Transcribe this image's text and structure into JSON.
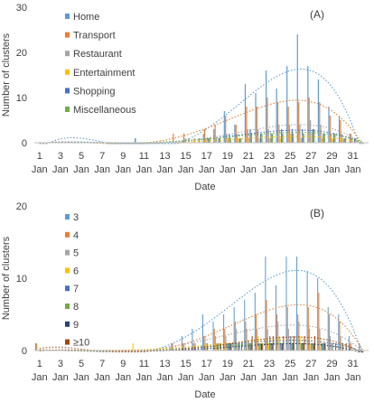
{
  "chart_data": [
    {
      "type": "bar",
      "panel_label": "(A)",
      "xlabel": "Date",
      "ylabel": "Number of clusters",
      "ylim": [
        0,
        30
      ],
      "yticks": [
        0,
        10,
        20,
        30
      ],
      "grid": false,
      "legend_position": "top-left, inside plot",
      "trendlines": "dotted polynomial, one per series",
      "x_tick_days": [
        1,
        3,
        5,
        7,
        9,
        11,
        13,
        15,
        17,
        19,
        21,
        23,
        25,
        27,
        29,
        31
      ],
      "x_tick_month": "Jan",
      "x": [
        1,
        2,
        3,
        4,
        5,
        6,
        7,
        8,
        9,
        10,
        11,
        12,
        13,
        14,
        15,
        16,
        17,
        18,
        19,
        20,
        21,
        22,
        23,
        24,
        25,
        26,
        27,
        28,
        29,
        30,
        31,
        32
      ],
      "series": [
        {
          "name": "Home",
          "color": "#5B9BD5",
          "values": [
            0,
            0,
            0,
            0,
            0,
            0,
            0,
            0,
            0,
            0,
            0,
            0,
            0,
            0,
            0,
            0,
            2,
            3,
            7,
            4,
            13,
            11,
            16,
            12,
            17,
            24,
            17,
            14,
            8,
            6,
            2,
            0
          ]
        },
        {
          "name": "Transport",
          "color": "#ED7D31",
          "values": [
            0,
            0,
            0,
            0,
            0,
            0,
            0,
            0,
            0,
            0,
            0,
            0,
            0,
            2,
            2,
            1,
            3,
            4,
            6,
            4,
            8,
            8,
            10,
            9,
            8,
            9,
            10,
            9,
            6,
            5,
            2,
            0
          ]
        },
        {
          "name": "Restaurant",
          "color": "#A5A5A5",
          "values": [
            0,
            0,
            0,
            0,
            0,
            0,
            0,
            0,
            0,
            0,
            0,
            0,
            0,
            0,
            1,
            0,
            1,
            1,
            2,
            2,
            3,
            3,
            3,
            4,
            4,
            4,
            5,
            4,
            2,
            2,
            1,
            0
          ]
        },
        {
          "name": "Entertainment",
          "color": "#FFC000",
          "values": [
            0,
            0,
            0,
            0,
            0,
            0,
            0,
            0,
            0,
            0,
            0,
            0,
            0,
            0,
            0,
            0,
            1,
            0,
            1,
            1,
            1,
            1,
            1,
            1,
            2,
            1,
            2,
            1,
            1,
            1,
            0,
            0
          ]
        },
        {
          "name": "Shopping",
          "color": "#4472C4",
          "values": [
            0,
            0,
            0,
            0,
            0,
            0,
            0,
            0,
            0,
            1,
            0,
            0,
            0,
            0,
            0,
            0,
            1,
            1,
            2,
            1,
            3,
            2,
            2,
            3,
            3,
            3,
            3,
            2,
            2,
            1,
            1,
            0
          ]
        },
        {
          "name": "Miscellaneous",
          "color": "#70AD47",
          "values": [
            0,
            0,
            0,
            0,
            0,
            0,
            0,
            0,
            0,
            0,
            0,
            0,
            0,
            0,
            1,
            1,
            1,
            1,
            1,
            1,
            2,
            2,
            2,
            2,
            2,
            2,
            3,
            2,
            2,
            1,
            1,
            0
          ]
        }
      ]
    },
    {
      "type": "bar",
      "panel_label": "(B)",
      "xlabel": "Date",
      "ylabel": "Number of clusters",
      "ylim": [
        0,
        20
      ],
      "yticks": [
        0,
        10,
        20
      ],
      "grid": false,
      "legend_position": "top-left, inside plot",
      "trendlines": "dotted polynomial, one per series",
      "x_tick_days": [
        1,
        3,
        5,
        7,
        9,
        11,
        13,
        15,
        17,
        19,
        21,
        23,
        25,
        27,
        29,
        31
      ],
      "x_tick_month": "Jan",
      "x": [
        1,
        2,
        3,
        4,
        5,
        6,
        7,
        8,
        9,
        10,
        11,
        12,
        13,
        14,
        15,
        16,
        17,
        18,
        19,
        20,
        21,
        22,
        23,
        24,
        25,
        26,
        27,
        28,
        29,
        30,
        31,
        32
      ],
      "series": [
        {
          "name": "3",
          "color": "#5B9BD5",
          "values": [
            1,
            0,
            0,
            0,
            0,
            0,
            0,
            0,
            0,
            0,
            0,
            0,
            0,
            1,
            2,
            3,
            5,
            4,
            5,
            6,
            7,
            8,
            13,
            9,
            13,
            13,
            11,
            10,
            6,
            5,
            2,
            1
          ]
        },
        {
          "name": "4",
          "color": "#ED7D31",
          "values": [
            1,
            0,
            0,
            0,
            0,
            0,
            0,
            0,
            0,
            0,
            0,
            0,
            0,
            1,
            1,
            1,
            2,
            3,
            3,
            4,
            4,
            5,
            7,
            5,
            6,
            5,
            6,
            8,
            5,
            4,
            1,
            0
          ]
        },
        {
          "name": "5",
          "color": "#A5A5A5",
          "values": [
            0,
            0,
            0,
            0,
            0,
            0,
            0,
            0,
            0,
            0,
            0,
            0,
            0,
            0,
            1,
            1,
            2,
            2,
            2,
            3,
            3,
            3,
            3,
            4,
            3,
            4,
            3,
            3,
            2,
            2,
            1,
            0
          ]
        },
        {
          "name": "6",
          "color": "#FFC000",
          "values": [
            0,
            0,
            0,
            0,
            0,
            0,
            0,
            0,
            0,
            1,
            0,
            0,
            0,
            0,
            0,
            1,
            1,
            1,
            1,
            1,
            1,
            2,
            1,
            2,
            1,
            2,
            1,
            1,
            1,
            1,
            0,
            0
          ]
        },
        {
          "name": "7",
          "color": "#4472C4",
          "values": [
            0,
            0,
            0,
            0,
            0,
            0,
            0,
            0,
            0,
            0,
            0,
            0,
            0,
            0,
            0,
            0,
            1,
            1,
            1,
            1,
            1,
            1,
            2,
            1,
            2,
            1,
            1,
            1,
            1,
            1,
            0,
            0
          ]
        },
        {
          "name": "8",
          "color": "#70AD47",
          "values": [
            0,
            0,
            0,
            0,
            0,
            0,
            0,
            0,
            0,
            0,
            0,
            0,
            0,
            0,
            0,
            0,
            0,
            1,
            1,
            1,
            1,
            1,
            1,
            1,
            1,
            1,
            1,
            1,
            0,
            0,
            0,
            0
          ]
        },
        {
          "name": "9",
          "color": "#264478",
          "values": [
            0,
            0,
            0,
            0,
            0,
            0,
            0,
            0,
            0,
            0,
            0,
            0,
            0,
            0,
            0,
            0,
            0,
            0,
            1,
            0,
            1,
            1,
            1,
            1,
            1,
            1,
            1,
            1,
            0,
            0,
            0,
            0
          ]
        },
        {
          "name": "≥10",
          "color": "#9E480E",
          "values": [
            0,
            0,
            0,
            0,
            0,
            0,
            0,
            0,
            0,
            0,
            0,
            0,
            0,
            0,
            0,
            0,
            0,
            1,
            1,
            1,
            2,
            1,
            2,
            2,
            2,
            2,
            2,
            1,
            1,
            1,
            0,
            0
          ]
        }
      ]
    }
  ]
}
